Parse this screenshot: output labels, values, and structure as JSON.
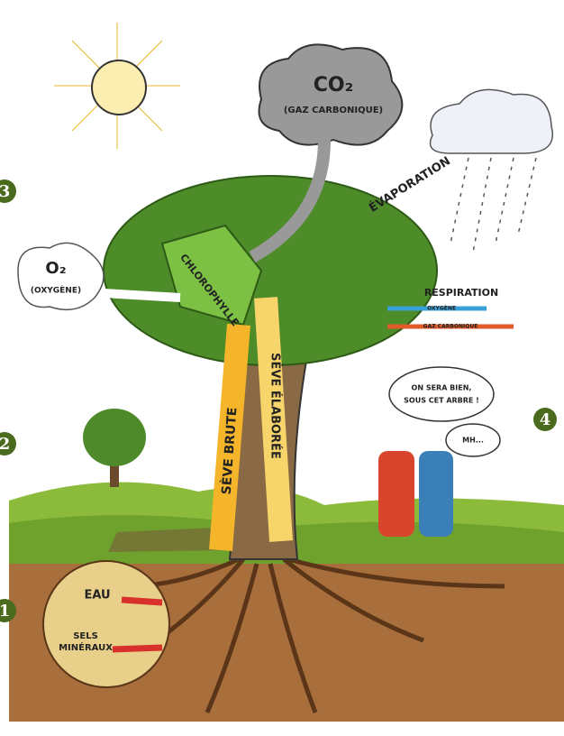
{
  "labels": {
    "co2": "CO₂",
    "co2_name": "(GAZ CARBONIQUE)",
    "evaporation": "ÉVAPORATION",
    "o2": "O₂",
    "o2_name": "(OXYGÈNE)",
    "chlorophyll": "CHLOROPHYLLE",
    "respiration": "RESPIRATION",
    "resp_oxygen": "OXYGÈNE",
    "resp_co2": "GAZ CARBONIQUE",
    "sap_elaborated": "SÈVE ÉLABORÉE",
    "sap_raw": "SÈVE BRUTE",
    "speech_1_line_1": "ON SERA BIEN,",
    "speech_1_line_2": "SOUS CET ARBRE !",
    "speech_2": "MH...",
    "water": "EAU",
    "salts_line_1": "SELS",
    "salts_line_2": "MINÉRAUX"
  },
  "markers": [
    "1",
    "2",
    "3",
    "4"
  ]
}
